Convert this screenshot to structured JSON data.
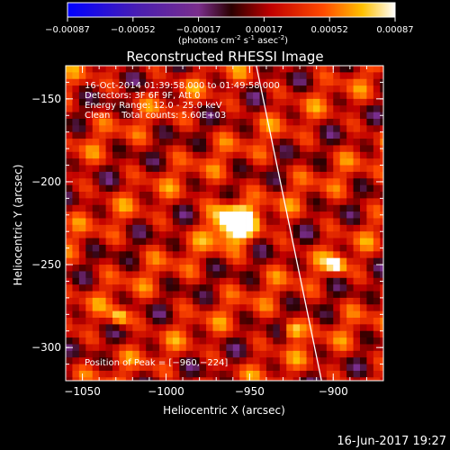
{
  "colorbar": {
    "ticks": [
      "-0.00087",
      "-0.00052",
      "-0.00017",
      "0.00017",
      "0.00052",
      "0.00087"
    ],
    "unit_prefix": "(photons cm",
    "unit_exp1": "-2",
    "unit_mid1": " s",
    "unit_exp2": "-1",
    "unit_mid2": " asec",
    "unit_exp3": "-2",
    "unit_suffix": ")"
  },
  "chart_data": {
    "type": "heatmap",
    "title": "Reconstructed RHESSI Image",
    "xlabel": "Heliocentric X (arcsec)",
    "ylabel": "Heliocentric Y (arcsec)",
    "xlim": [
      -1060,
      -870
    ],
    "ylim": [
      -320,
      -130
    ],
    "xticks": [
      -1050,
      -1000,
      -950,
      -900
    ],
    "yticks": [
      -150,
      -200,
      -250,
      -300
    ],
    "xtick_labels": [
      "−1050",
      "−1000",
      "−950",
      "−900"
    ],
    "ytick_labels": [
      "−150",
      "−200",
      "−250",
      "−300"
    ],
    "colorbar_range": [
      -0.00087,
      0.00087
    ],
    "peak": {
      "x": -960,
      "y": -224,
      "label": "Position of Peak = [−960,−224]"
    },
    "secondary_sources": [
      {
        "x": -1028,
        "y": -282
      },
      {
        "x": -898,
        "y": -250
      },
      {
        "x": -925,
        "y": -290
      }
    ],
    "limb_line": {
      "x": [
        -946,
        -907
      ],
      "y": [
        -130,
        -320
      ]
    }
  },
  "annotations": {
    "time_range": "16-Oct-2014 01:39:58.000 to 01:49:58.000",
    "detectors": "Detectors: 3F 6F 9F, Att 0",
    "energy": "Energy Range: 12.0 - 25.0 keV",
    "clean": "Clean    Total counts: 5.60E+03"
  },
  "footer": {
    "timestamp": "16-Jun-2017 19:27"
  }
}
